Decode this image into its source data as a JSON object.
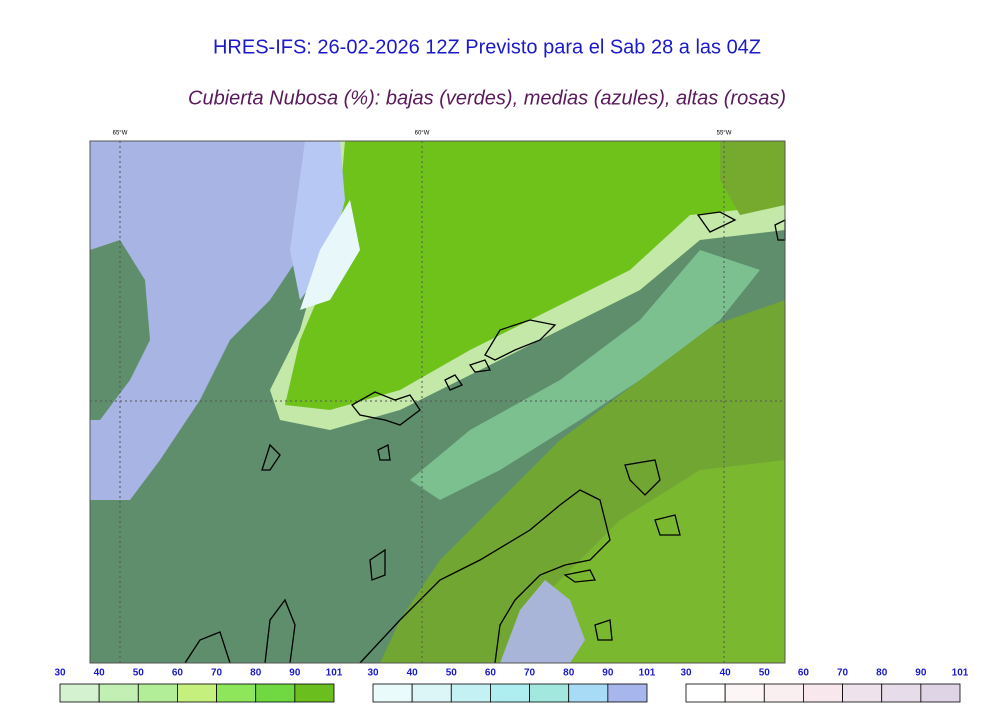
{
  "header": {
    "title": "HRES-IFS: 26-02-2026 12Z Previsto para el Sab 28 a las 04Z",
    "subtitle": "Cubierta Nubosa (%): bajas (verdes), medias (azules), altas (rosas)"
  },
  "map": {
    "lon_labels": [
      "65°W",
      "60°W",
      "55°W"
    ]
  },
  "colorbars": [
    {
      "ticks": [
        30,
        40,
        50,
        60,
        70,
        80,
        90,
        101
      ],
      "colors": [
        "#d4f2d0",
        "#c2f0b4",
        "#b2ee98",
        "#c6f07e",
        "#8ee65a",
        "#70d840",
        "#6abe1e"
      ]
    },
    {
      "ticks": [
        30,
        40,
        50,
        60,
        70,
        80,
        90,
        101
      ],
      "colors": [
        "#eafbfb",
        "#dcf6f8",
        "#c4f2f4",
        "#aeeef0",
        "#a2e8de",
        "#a8dcf6",
        "#a8b6ee"
      ]
    },
    {
      "ticks": [
        30,
        40,
        50,
        60,
        70,
        80,
        90,
        101
      ],
      "colors": [
        "#ffffff",
        "#fcf6f7",
        "#f9eff1",
        "#f8e8ee",
        "#eee2ec",
        "#e6dcea",
        "#dfd3e6"
      ]
    }
  ]
}
